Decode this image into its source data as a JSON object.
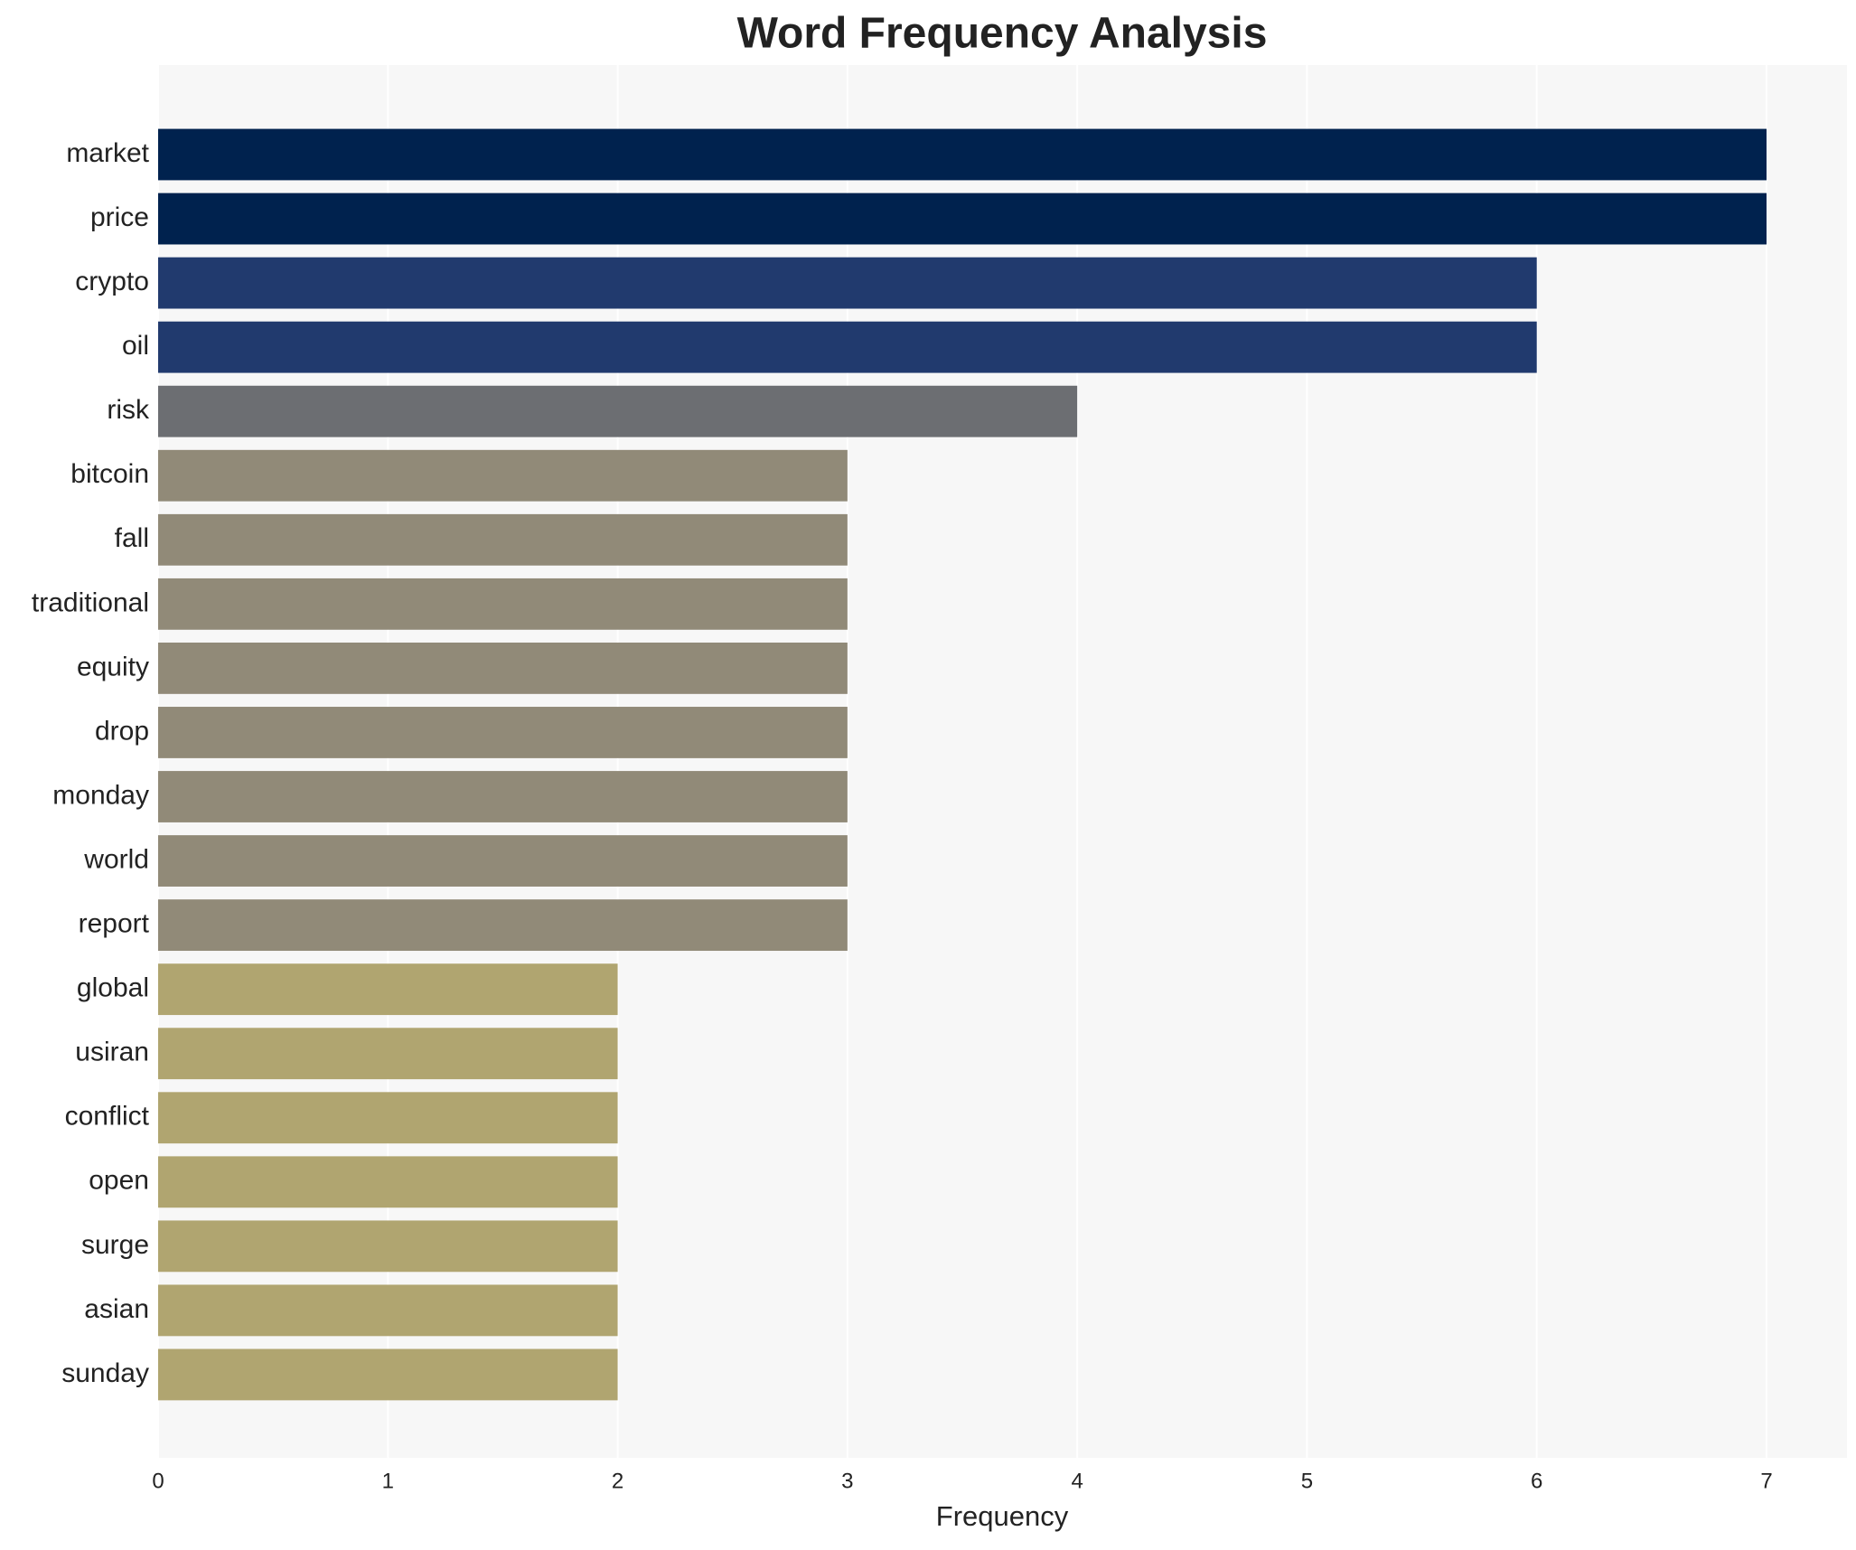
{
  "chart_data": {
    "type": "barh",
    "title": "Word Frequency Analysis",
    "xlabel": "Frequency",
    "categories": [
      "market",
      "price",
      "crypto",
      "oil",
      "risk",
      "bitcoin",
      "fall",
      "traditional",
      "equity",
      "drop",
      "monday",
      "world",
      "report",
      "global",
      "usiran",
      "conflict",
      "open",
      "surge",
      "asian",
      "sunday"
    ],
    "values": [
      7,
      7,
      6,
      6,
      4,
      3,
      3,
      3,
      3,
      3,
      3,
      3,
      3,
      2,
      2,
      2,
      2,
      2,
      2,
      2
    ],
    "colors": [
      "#00224e",
      "#00224e",
      "#213a6e",
      "#213a6e",
      "#6c6e72",
      "#918a78",
      "#918a78",
      "#918a78",
      "#918a78",
      "#918a78",
      "#918a78",
      "#918a78",
      "#918a78",
      "#b0a570",
      "#b0a570",
      "#b0a570",
      "#b0a570",
      "#b0a570",
      "#b0a570",
      "#b0a570"
    ],
    "xlim": [
      0,
      7.35
    ],
    "xticks": [
      0,
      1,
      2,
      3,
      4,
      5,
      6,
      7
    ],
    "grid": true
  }
}
